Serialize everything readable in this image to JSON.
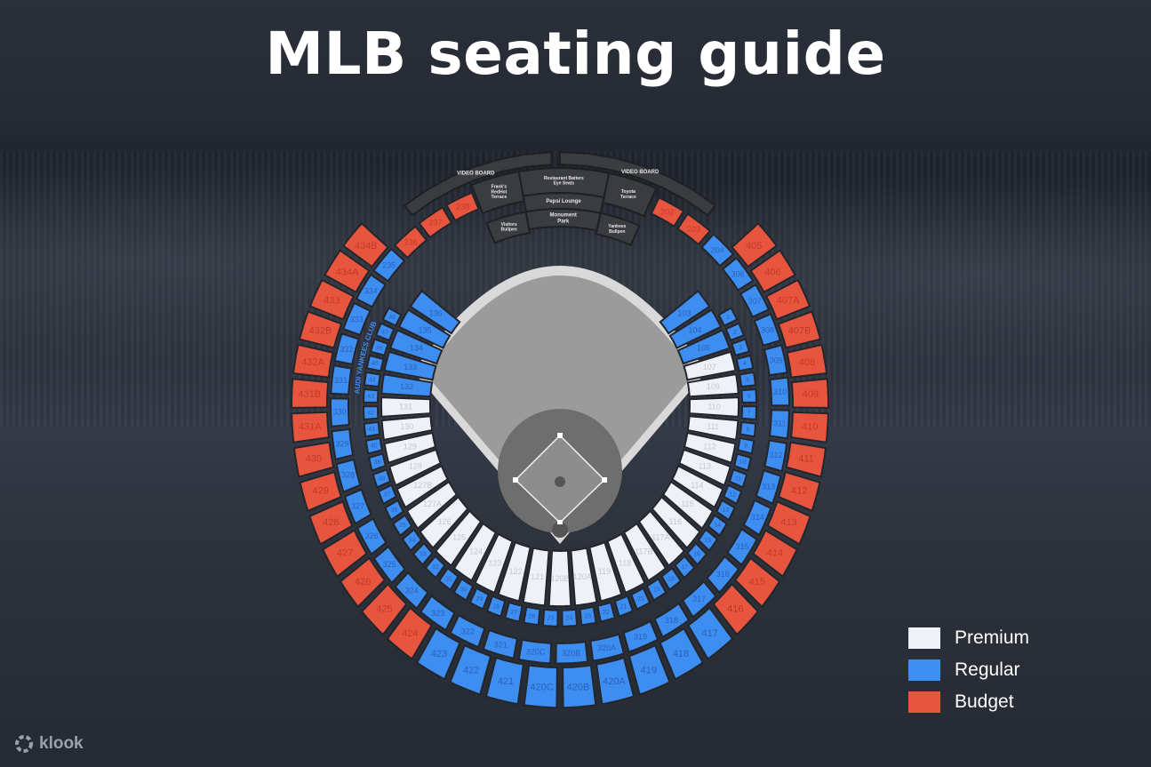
{
  "title": "MLB seating guide",
  "colors": {
    "premium": "#eef2f8",
    "regular": "#3d8ef0",
    "budget": "#e8553f",
    "structure": "#3a3c40",
    "field": "#9b9b9b"
  },
  "legend": [
    {
      "label": "Premium",
      "tier": "premium"
    },
    {
      "label": "Regular",
      "tier": "regular"
    },
    {
      "label": "Budget",
      "tier": "budget"
    }
  ],
  "logo": "klook",
  "venue_labels": {
    "video_board_left": "VIDEO BOARD",
    "video_board_right": "VIDEO BOARD",
    "franks_terrace": "Frank's RedHot Terrace",
    "restaurant": "Restaurant Batters Eye Seats",
    "pepsi_lounge": "Pepsi Lounge",
    "monument_park": "Monument Park",
    "toyota_terrace": "Toyota Terrace",
    "visitors_bullpen": "Visitors Bullpen",
    "yankees_bullpen": "Yankees Bullpen",
    "club": "AUDI YANKEES CLUB"
  },
  "rings": [
    {
      "name": "upper-400s",
      "sections": [
        {
          "label": "405",
          "tier": "budget"
        },
        {
          "label": "406",
          "tier": "budget"
        },
        {
          "label": "407A",
          "tier": "budget"
        },
        {
          "label": "407B",
          "tier": "budget"
        },
        {
          "label": "408",
          "tier": "budget"
        },
        {
          "label": "409",
          "tier": "budget"
        },
        {
          "label": "410",
          "tier": "budget"
        },
        {
          "label": "411",
          "tier": "budget"
        },
        {
          "label": "412",
          "tier": "budget"
        },
        {
          "label": "413",
          "tier": "budget"
        },
        {
          "label": "414",
          "tier": "budget"
        },
        {
          "label": "415",
          "tier": "budget"
        },
        {
          "label": "416",
          "tier": "budget"
        },
        {
          "label": "417",
          "tier": "regular"
        },
        {
          "label": "418",
          "tier": "regular"
        },
        {
          "label": "419",
          "tier": "regular"
        },
        {
          "label": "420A",
          "tier": "regular"
        },
        {
          "label": "420B",
          "tier": "regular"
        },
        {
          "label": "420C",
          "tier": "regular"
        },
        {
          "label": "421",
          "tier": "regular"
        },
        {
          "label": "422",
          "tier": "regular"
        },
        {
          "label": "423",
          "tier": "regular"
        },
        {
          "label": "424",
          "tier": "budget"
        },
        {
          "label": "425",
          "tier": "budget"
        },
        {
          "label": "426",
          "tier": "budget"
        },
        {
          "label": "427",
          "tier": "budget"
        },
        {
          "label": "428",
          "tier": "budget"
        },
        {
          "label": "429",
          "tier": "budget"
        },
        {
          "label": "430",
          "tier": "budget"
        },
        {
          "label": "431A",
          "tier": "budget"
        },
        {
          "label": "431B",
          "tier": "budget"
        },
        {
          "label": "432A",
          "tier": "budget"
        },
        {
          "label": "432B",
          "tier": "budget"
        },
        {
          "label": "433",
          "tier": "budget"
        },
        {
          "label": "434A",
          "tier": "budget"
        },
        {
          "label": "434B",
          "tier": "budget"
        }
      ]
    },
    {
      "name": "main-200s-300s",
      "sections": [
        {
          "label": "202",
          "tier": "budget"
        },
        {
          "label": "203",
          "tier": "budget"
        },
        {
          "label": "204",
          "tier": "regular"
        },
        {
          "label": "306",
          "tier": "regular"
        },
        {
          "label": "307",
          "tier": "regular"
        },
        {
          "label": "308",
          "tier": "regular"
        },
        {
          "label": "309",
          "tier": "regular"
        },
        {
          "label": "310",
          "tier": "regular"
        },
        {
          "label": "311",
          "tier": "regular"
        },
        {
          "label": "312",
          "tier": "regular"
        },
        {
          "label": "313",
          "tier": "regular"
        },
        {
          "label": "314",
          "tier": "regular"
        },
        {
          "label": "315",
          "tier": "regular"
        },
        {
          "label": "316",
          "tier": "regular"
        },
        {
          "label": "317",
          "tier": "regular"
        },
        {
          "label": "318",
          "tier": "regular"
        },
        {
          "label": "319",
          "tier": "regular"
        },
        {
          "label": "320A",
          "tier": "regular"
        },
        {
          "label": "320B",
          "tier": "regular"
        },
        {
          "label": "320C",
          "tier": "regular"
        },
        {
          "label": "321",
          "tier": "regular"
        },
        {
          "label": "322",
          "tier": "regular"
        },
        {
          "label": "323",
          "tier": "regular"
        },
        {
          "label": "324",
          "tier": "regular"
        },
        {
          "label": "325",
          "tier": "regular"
        },
        {
          "label": "326",
          "tier": "regular"
        },
        {
          "label": "327",
          "tier": "regular"
        },
        {
          "label": "328",
          "tier": "regular"
        },
        {
          "label": "329",
          "tier": "regular"
        },
        {
          "label": "330",
          "tier": "regular"
        },
        {
          "label": "331",
          "tier": "regular"
        },
        {
          "label": "332",
          "tier": "regular"
        },
        {
          "label": "333",
          "tier": "regular"
        },
        {
          "label": "334",
          "tier": "regular"
        },
        {
          "label": "235",
          "tier": "regular"
        },
        {
          "label": "236",
          "tier": "budget"
        },
        {
          "label": "237",
          "tier": "budget"
        },
        {
          "label": "238",
          "tier": "budget"
        }
      ]
    },
    {
      "name": "field-level-numbered",
      "sections": [
        {
          "label": "1",
          "tier": "regular"
        },
        {
          "label": "2",
          "tier": "regular"
        },
        {
          "label": "3",
          "tier": "regular"
        },
        {
          "label": "4",
          "tier": "regular"
        },
        {
          "label": "5",
          "tier": "regular"
        },
        {
          "label": "6",
          "tier": "regular"
        },
        {
          "label": "7",
          "tier": "regular"
        },
        {
          "label": "8",
          "tier": "regular"
        },
        {
          "label": "9",
          "tier": "regular"
        },
        {
          "label": "10",
          "tier": "regular"
        },
        {
          "label": "11",
          "tier": "regular"
        },
        {
          "label": "12",
          "tier": "regular"
        },
        {
          "label": "13",
          "tier": "regular"
        },
        {
          "label": "14",
          "tier": "regular"
        },
        {
          "label": "15",
          "tier": "regular"
        },
        {
          "label": "16",
          "tier": "regular"
        },
        {
          "label": "17",
          "tier": "regular"
        },
        {
          "label": "18",
          "tier": "regular"
        },
        {
          "label": "19",
          "tier": "regular"
        },
        {
          "label": "20",
          "tier": "regular"
        },
        {
          "label": "21",
          "tier": "regular"
        },
        {
          "label": "22",
          "tier": "regular"
        },
        {
          "label": "23",
          "tier": "regular"
        },
        {
          "label": "24",
          "tier": "regular"
        },
        {
          "label": "25",
          "tier": "regular"
        },
        {
          "label": "26",
          "tier": "regular"
        },
        {
          "label": "27",
          "tier": "regular"
        },
        {
          "label": "28",
          "tier": "regular"
        },
        {
          "label": "29",
          "tier": "regular"
        },
        {
          "label": "30",
          "tier": "regular"
        },
        {
          "label": "31",
          "tier": "regular"
        },
        {
          "label": "32",
          "tier": "regular"
        },
        {
          "label": "33",
          "tier": "regular"
        },
        {
          "label": "34",
          "tier": "regular"
        },
        {
          "label": "35",
          "tier": "regular"
        },
        {
          "label": "36",
          "tier": "regular"
        },
        {
          "label": "37",
          "tier": "regular"
        },
        {
          "label": "38",
          "tier": "regular"
        },
        {
          "label": "39",
          "tier": "regular"
        },
        {
          "label": "40",
          "tier": "regular"
        },
        {
          "label": "41",
          "tier": "regular"
        },
        {
          "label": "42",
          "tier": "regular"
        },
        {
          "label": "43",
          "tier": "regular"
        },
        {
          "label": "44",
          "tier": "regular"
        },
        {
          "label": "45",
          "tier": "regular"
        },
        {
          "label": "46",
          "tier": "regular"
        },
        {
          "label": "47",
          "tier": "regular"
        },
        {
          "label": "48",
          "tier": "regular"
        }
      ]
    },
    {
      "name": "field-level-100s",
      "sections": [
        {
          "label": "103",
          "tier": "regular"
        },
        {
          "label": "104",
          "tier": "regular"
        },
        {
          "label": "105",
          "tier": "regular"
        },
        {
          "label": "107",
          "tier": "premium"
        },
        {
          "label": "109",
          "tier": "premium"
        },
        {
          "label": "110",
          "tier": "premium"
        },
        {
          "label": "111",
          "tier": "premium"
        },
        {
          "label": "112",
          "tier": "premium"
        },
        {
          "label": "113",
          "tier": "premium"
        },
        {
          "label": "114",
          "tier": "premium"
        },
        {
          "label": "115",
          "tier": "premium"
        },
        {
          "label": "116",
          "tier": "premium"
        },
        {
          "label": "117A",
          "tier": "premium"
        },
        {
          "label": "117B",
          "tier": "premium"
        },
        {
          "label": "118",
          "tier": "premium"
        },
        {
          "label": "119",
          "tier": "premium"
        },
        {
          "label": "120A",
          "tier": "premium"
        },
        {
          "label": "120B",
          "tier": "premium"
        },
        {
          "label": "121",
          "tier": "premium"
        },
        {
          "label": "122",
          "tier": "premium"
        },
        {
          "label": "123",
          "tier": "premium"
        },
        {
          "label": "124",
          "tier": "premium"
        },
        {
          "label": "125",
          "tier": "premium"
        },
        {
          "label": "126",
          "tier": "premium"
        },
        {
          "label": "127A",
          "tier": "premium"
        },
        {
          "label": "127B",
          "tier": "premium"
        },
        {
          "label": "128",
          "tier": "premium"
        },
        {
          "label": "129",
          "tier": "premium"
        },
        {
          "label": "130",
          "tier": "premium"
        },
        {
          "label": "131",
          "tier": "premium"
        },
        {
          "label": "132",
          "tier": "regular"
        },
        {
          "label": "133",
          "tier": "regular"
        },
        {
          "label": "134",
          "tier": "regular"
        },
        {
          "label": "135",
          "tier": "regular"
        },
        {
          "label": "136",
          "tier": "regular"
        }
      ]
    }
  ]
}
